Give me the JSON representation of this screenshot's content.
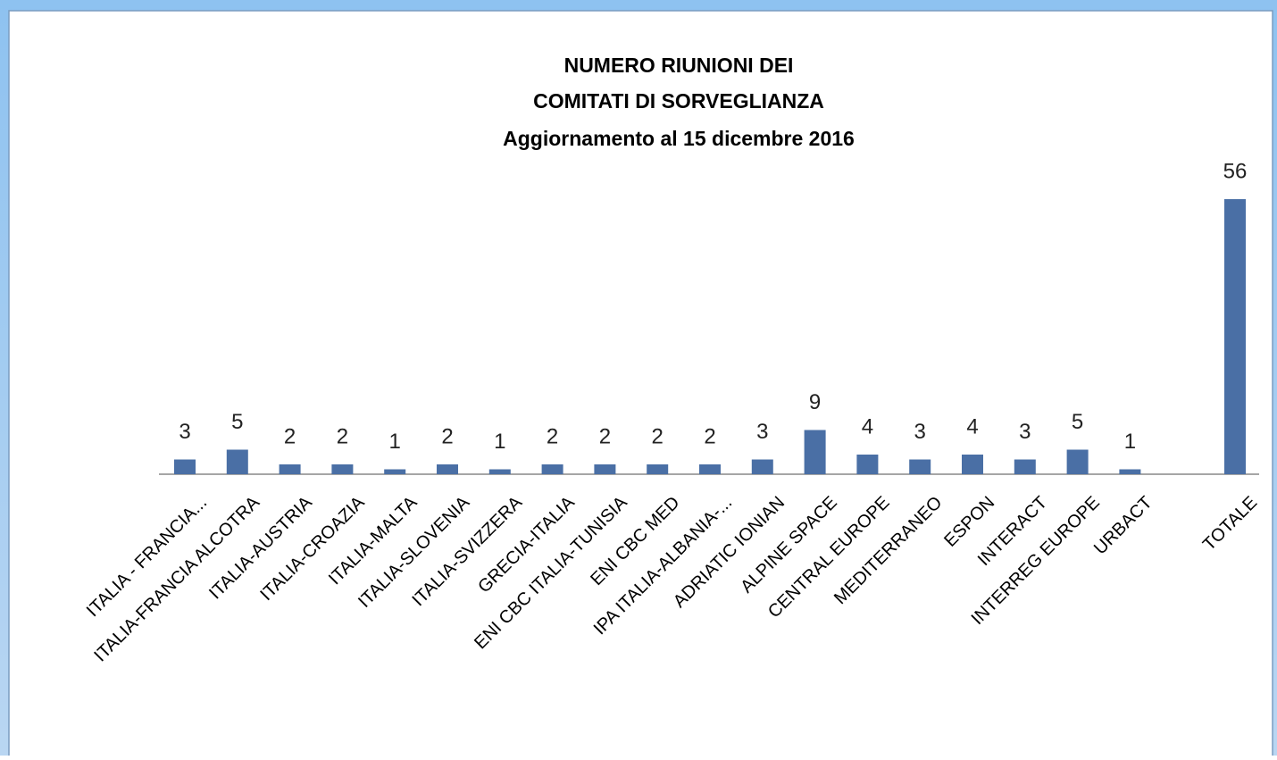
{
  "chart_data": {
    "type": "bar",
    "title": [
      "NUMERO RIUNIONI DEI",
      "COMITATI DI SORVEGLIANZA",
      "Aggiornamento al 15 dicembre 2016"
    ],
    "categories": [
      "ITALIA - FRANCIA...",
      "ITALIA-FRANCIA ALCOTRA",
      "ITALIA-AUSTRIA",
      "ITALIA-CROAZIA",
      "ITALIA-MALTA",
      "ITALIA-SLOVENIA",
      "ITALIA-SVIZZERA",
      "GRECIA-ITALIA",
      "ENI CBC ITALIA-TUNISIA",
      "ENI CBC MED",
      "IPA ITALIA-ALBANIA-...",
      "ADRIATIC IONIAN",
      "ALPINE SPACE",
      "CENTRAL EUROPE",
      "MEDITERRANEO",
      "ESPON",
      "INTERACT",
      "INTERREG EUROPE",
      "URBACT",
      null,
      "TOTALE"
    ],
    "values": [
      3,
      5,
      2,
      2,
      1,
      2,
      1,
      2,
      2,
      2,
      2,
      3,
      9,
      4,
      3,
      4,
      3,
      5,
      1,
      null,
      56
    ],
    "color": "#4a6fa5"
  }
}
